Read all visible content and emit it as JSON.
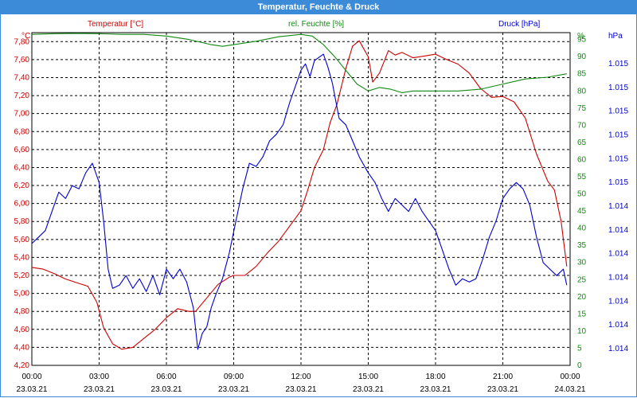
{
  "window": {
    "title": "Temperatur, Feuchte & Druck"
  },
  "chart_data": {
    "type": "line",
    "title": "Temperatur, Feuchte & Druck",
    "colors": {
      "temperature": "#cc0000",
      "humidity": "#118811",
      "pressure": "#0000cc",
      "frame": "#3b8bd8",
      "grid": "#000000"
    },
    "axes": {
      "x": {
        "ticks": [
          {
            "time": "00:00",
            "date": "23.03.21"
          },
          {
            "time": "03:00",
            "date": "23.03.21"
          },
          {
            "time": "06:00",
            "date": "23.03.21"
          },
          {
            "time": "09:00",
            "date": "23.03.21"
          },
          {
            "time": "12:00",
            "date": "23.03.21"
          },
          {
            "time": "15:00",
            "date": "23.03.21"
          },
          {
            "time": "18:00",
            "date": "23.03.21"
          },
          {
            "time": "21:00",
            "date": "23.03.21"
          },
          {
            "time": "00:00",
            "date": "24.03.21"
          }
        ],
        "range_hours": [
          0,
          24
        ]
      },
      "y_left": {
        "label": "Temperatur [°C]",
        "unit": "°C",
        "range": [
          4.2,
          7.9
        ],
        "ticks": [
          "7,80",
          "7,60",
          "7,40",
          "7,20",
          "7,00",
          "6,80",
          "6,60",
          "6,40",
          "6,20",
          "6,00",
          "5,80",
          "5,60",
          "5,40",
          "5,20",
          "5,00",
          "4,80",
          "4,60",
          "4,40",
          "4,20"
        ]
      },
      "y_mid": {
        "label": "rel. Feuchte [%]",
        "unit": "%",
        "range": [
          0,
          97
        ],
        "ticks": [
          "95",
          "90",
          "85",
          "80",
          "75",
          "70",
          "65",
          "60",
          "55",
          "50",
          "45",
          "40",
          "35",
          "30",
          "25",
          "20",
          "15",
          "10",
          "5",
          "0"
        ]
      },
      "y_right": {
        "label": "Druck [hPa]",
        "unit": "hPa",
        "ticks": [
          "1.015",
          "1.015",
          "1.015",
          "1.015",
          "1.015",
          "1.015",
          "1.014",
          "1.014",
          "1.014",
          "1.014",
          "1.014",
          "1.014",
          "1.014"
        ]
      }
    },
    "series": [
      {
        "name": "Temperatur [°C]",
        "color": "#cc0000",
        "axis": "left",
        "x": [
          0,
          0.5,
          1,
          1.5,
          2,
          2.5,
          2.9,
          3.2,
          3.6,
          4,
          4.5,
          5,
          5.5,
          6,
          6.5,
          7,
          7.3,
          7.8,
          8.3,
          8.8,
          9,
          9.5,
          10,
          10.5,
          11,
          11.5,
          12,
          12.3,
          12.6,
          13,
          13.3,
          13.6,
          14,
          14.3,
          14.6,
          15,
          15.2,
          15.5,
          15.9,
          16.2,
          16.5,
          17,
          17.5,
          18,
          18.5,
          19,
          19.5,
          20,
          20.5,
          21,
          21.5,
          22,
          22.5,
          23,
          23.3,
          23.6,
          23.85
        ],
        "y": [
          5.29,
          5.27,
          5.22,
          5.16,
          5.12,
          5.08,
          4.9,
          4.62,
          4.44,
          4.38,
          4.4,
          4.5,
          4.6,
          4.73,
          4.83,
          4.8,
          4.8,
          4.95,
          5.1,
          5.18,
          5.2,
          5.2,
          5.3,
          5.45,
          5.58,
          5.75,
          5.92,
          6.15,
          6.4,
          6.6,
          6.9,
          7.1,
          7.5,
          7.75,
          7.81,
          7.63,
          7.35,
          7.45,
          7.7,
          7.65,
          7.68,
          7.62,
          7.64,
          7.66,
          7.6,
          7.55,
          7.45,
          7.28,
          7.18,
          7.19,
          7.13,
          6.95,
          6.55,
          6.25,
          6.15,
          5.8,
          5.3
        ]
      },
      {
        "name": "rel. Feuchte [%]",
        "color": "#118811",
        "axis": "mid",
        "x": [
          0,
          1,
          2,
          3,
          4,
          5,
          6,
          7,
          8,
          8.5,
          9,
          10,
          11,
          12,
          12.5,
          13,
          13.5,
          14,
          14.5,
          15,
          15.5,
          16,
          16.5,
          17,
          18,
          19,
          20,
          21,
          22,
          23,
          23.85
        ],
        "y": [
          96.5,
          96.7,
          96.8,
          96.7,
          96.5,
          96.5,
          96,
          95,
          93.5,
          93,
          93.5,
          94.5,
          95.8,
          96.5,
          96,
          93.5,
          90,
          86,
          82,
          80,
          81,
          80.5,
          79.5,
          80,
          80,
          80,
          80.5,
          82,
          83.5,
          84,
          85
        ]
      },
      {
        "name": "Druck [hPa]",
        "color": "#0000cc",
        "axis": "right",
        "range": [
          0,
          100
        ],
        "x": [
          0,
          0.3,
          0.6,
          0.9,
          1.2,
          1.5,
          1.8,
          2.1,
          2.4,
          2.7,
          3,
          3.2,
          3.4,
          3.6,
          3.9,
          4.2,
          4.5,
          4.8,
          5.1,
          5.4,
          5.7,
          6,
          6.3,
          6.6,
          6.9,
          7.2,
          7.4,
          7.6,
          7.8,
          8,
          8.2,
          8.5,
          8.8,
          9.1,
          9.4,
          9.7,
          10,
          10.3,
          10.6,
          10.9,
          11.2,
          11.5,
          11.8,
          12,
          12.2,
          12.4,
          12.6,
          12.8,
          13,
          13.2,
          13.4,
          13.7,
          14,
          14.3,
          14.6,
          15,
          15.3,
          15.6,
          15.9,
          16.2,
          16.5,
          16.8,
          17.1,
          17.4,
          17.7,
          18,
          18.3,
          18.6,
          18.9,
          19.2,
          19.5,
          19.8,
          20.1,
          20.4,
          20.7,
          21,
          21.3,
          21.6,
          21.9,
          22.2,
          22.5,
          22.8,
          23.1,
          23.4,
          23.7,
          23.85
        ],
        "y": [
          38,
          40,
          42,
          48,
          54,
          52,
          56,
          55,
          60,
          63,
          57,
          45,
          30,
          24,
          25,
          28,
          24,
          27,
          23,
          28,
          22,
          30,
          27,
          30,
          26,
          18,
          5,
          10,
          12,
          18,
          22,
          27,
          35,
          45,
          55,
          63,
          62,
          65,
          70,
          72,
          75,
          82,
          88,
          92,
          94,
          90,
          95,
          96,
          97,
          93,
          88,
          77,
          75,
          70,
          65,
          60,
          57,
          52,
          48,
          52,
          50,
          48,
          52,
          48,
          45,
          42,
          36,
          30,
          25,
          27,
          26,
          27,
          33,
          40,
          45,
          52,
          55,
          57,
          55,
          50,
          40,
          32,
          30,
          28,
          30,
          25
        ]
      }
    ]
  }
}
